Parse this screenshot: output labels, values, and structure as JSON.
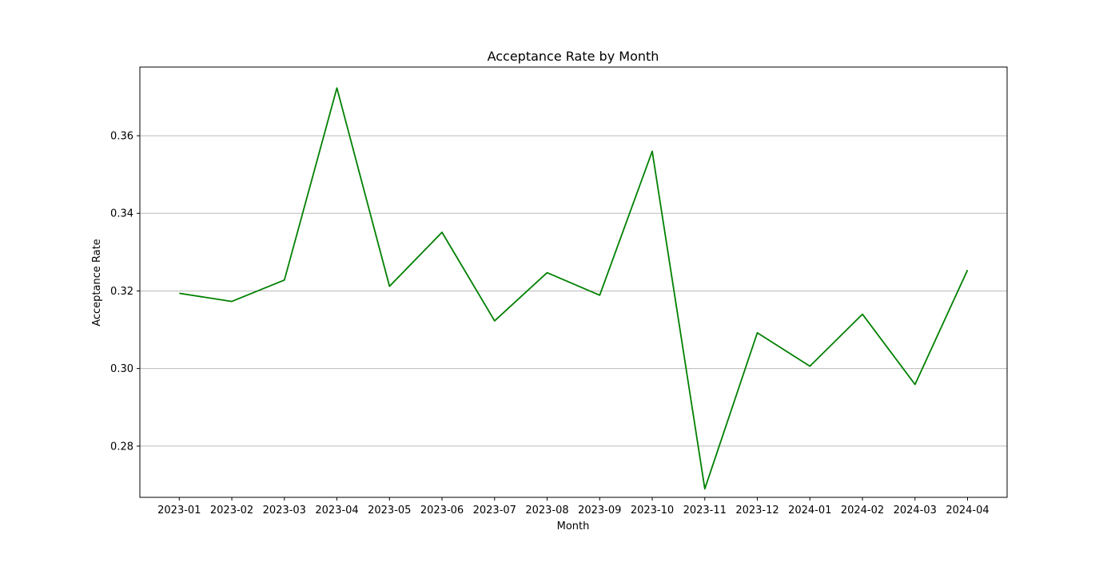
{
  "chart_data": {
    "type": "line",
    "title": "Acceptance Rate by Month",
    "xlabel": "Month",
    "ylabel": "Acceptance Rate",
    "categories": [
      "2023-01",
      "2023-02",
      "2023-03",
      "2023-04",
      "2023-05",
      "2023-06",
      "2023-07",
      "2023-08",
      "2023-09",
      "2023-10",
      "2023-11",
      "2023-12",
      "2024-01",
      "2024-02",
      "2024-03",
      "2024-04"
    ],
    "series": [
      {
        "values": [
          0.3194,
          0.3173,
          0.3228,
          0.3723,
          0.3212,
          0.3351,
          0.3123,
          0.3247,
          0.3189,
          0.356,
          0.269,
          0.3092,
          0.3006,
          0.314,
          0.2959,
          0.3254
        ],
        "color": "#008000"
      }
    ],
    "ylim": [
      0.2668,
      0.3777
    ],
    "yticks": [
      0.28,
      0.3,
      0.32,
      0.34,
      0.36
    ],
    "ytick_labels": [
      "0.28",
      "0.30",
      "0.32",
      "0.34",
      "0.36"
    ],
    "grid": "y-axis only"
  }
}
